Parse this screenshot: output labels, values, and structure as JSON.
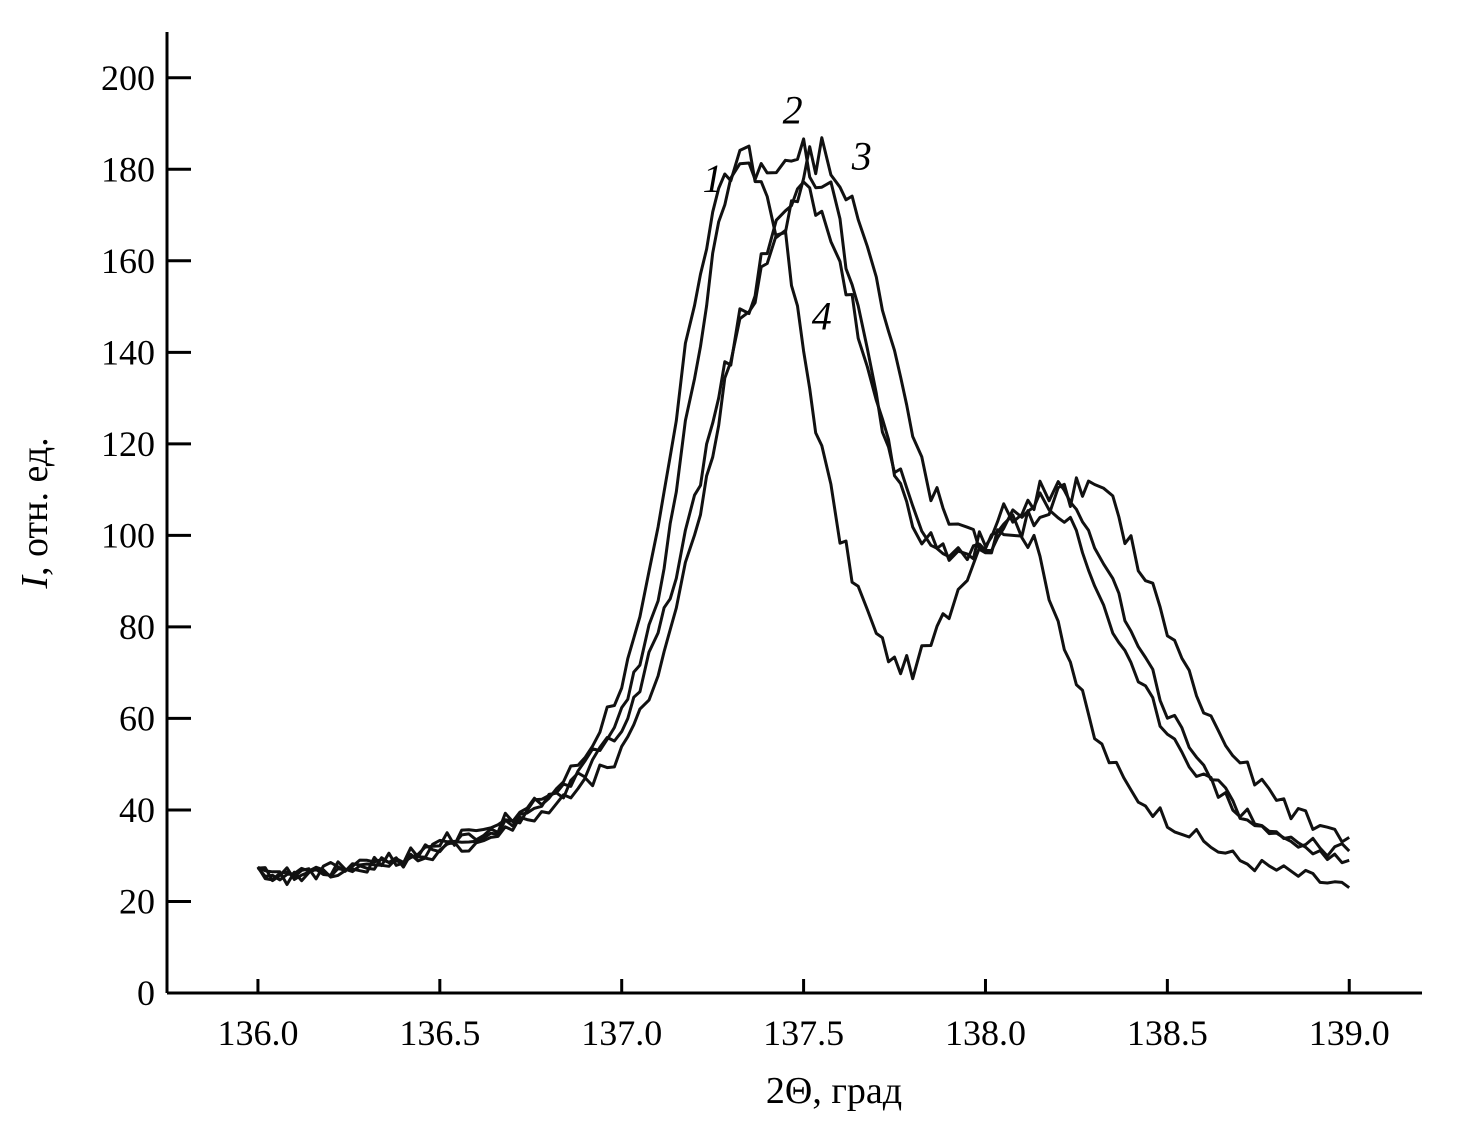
{
  "chart_data": {
    "type": "line",
    "xlabel": "2Θ, град",
    "ylabel_italic": "I",
    "ylabel_rest": ", отн. ед.",
    "xlim": [
      135.75,
      139.2
    ],
    "ylim": [
      0,
      210
    ],
    "x_ticks": [
      136.0,
      136.5,
      137.0,
      137.5,
      138.0,
      138.5,
      139.0
    ],
    "x_tick_labels": [
      "136.0",
      "136.5",
      "137.0",
      "137.5",
      "138.0",
      "138.5",
      "139.0"
    ],
    "y_ticks": [
      0,
      20,
      40,
      60,
      80,
      100,
      120,
      140,
      160,
      180,
      200
    ],
    "y_tick_labels": [
      "0",
      "20",
      "40",
      "60",
      "80",
      "100",
      "120",
      "140",
      "160",
      "180",
      "200"
    ],
    "series": [
      {
        "name": "1",
        "label_at": [
          137.25,
          175
        ],
        "points": [
          [
            136.0,
            26
          ],
          [
            136.1,
            26
          ],
          [
            136.2,
            27
          ],
          [
            136.3,
            28
          ],
          [
            136.4,
            30
          ],
          [
            136.5,
            32
          ],
          [
            136.6,
            35
          ],
          [
            136.7,
            38
          ],
          [
            136.8,
            43
          ],
          [
            136.9,
            52
          ],
          [
            137.0,
            68
          ],
          [
            137.05,
            80
          ],
          [
            137.1,
            100
          ],
          [
            137.15,
            125
          ],
          [
            137.2,
            152
          ],
          [
            137.25,
            172
          ],
          [
            137.3,
            180
          ],
          [
            137.35,
            181
          ],
          [
            137.4,
            175
          ],
          [
            137.45,
            163
          ],
          [
            137.5,
            140
          ],
          [
            137.55,
            118
          ],
          [
            137.6,
            100
          ],
          [
            137.65,
            88
          ],
          [
            137.7,
            78
          ],
          [
            137.75,
            72
          ],
          [
            137.8,
            71
          ],
          [
            137.85,
            76
          ],
          [
            137.9,
            84
          ],
          [
            137.95,
            93
          ],
          [
            138.0,
            100
          ],
          [
            138.05,
            104
          ],
          [
            138.1,
            102
          ],
          [
            138.15,
            95
          ],
          [
            138.2,
            82
          ],
          [
            138.25,
            68
          ],
          [
            138.3,
            56
          ],
          [
            138.4,
            44
          ],
          [
            138.5,
            38
          ],
          [
            138.6,
            33
          ],
          [
            138.7,
            29
          ],
          [
            138.8,
            27
          ],
          [
            138.9,
            25
          ],
          [
            139.0,
            23
          ]
        ]
      },
      {
        "name": "2",
        "label_at": [
          137.47,
          190
        ],
        "points": [
          [
            136.0,
            26
          ],
          [
            136.1,
            26
          ],
          [
            136.2,
            27
          ],
          [
            136.3,
            28
          ],
          [
            136.4,
            30
          ],
          [
            136.5,
            32
          ],
          [
            136.6,
            34
          ],
          [
            136.7,
            37
          ],
          [
            136.8,
            42
          ],
          [
            136.9,
            50
          ],
          [
            137.0,
            62
          ],
          [
            137.05,
            72
          ],
          [
            137.1,
            88
          ],
          [
            137.15,
            110
          ],
          [
            137.2,
            135
          ],
          [
            137.25,
            160
          ],
          [
            137.3,
            175
          ],
          [
            137.35,
            180
          ],
          [
            137.4,
            180
          ],
          [
            137.45,
            182
          ],
          [
            137.5,
            183
          ],
          [
            137.55,
            178
          ],
          [
            137.6,
            168
          ],
          [
            137.65,
            150
          ],
          [
            137.7,
            130
          ],
          [
            137.75,
            115
          ],
          [
            137.8,
            105
          ],
          [
            137.85,
            99
          ],
          [
            137.9,
            96
          ],
          [
            137.95,
            96
          ],
          [
            138.0,
            100
          ],
          [
            138.05,
            104
          ],
          [
            138.1,
            107
          ],
          [
            138.15,
            109
          ],
          [
            138.2,
            111
          ],
          [
            138.25,
            108
          ],
          [
            138.3,
            100
          ],
          [
            138.35,
            90
          ],
          [
            138.4,
            78
          ],
          [
            138.5,
            62
          ],
          [
            138.6,
            48
          ],
          [
            138.7,
            40
          ],
          [
            138.8,
            35
          ],
          [
            138.9,
            32
          ],
          [
            139.0,
            31
          ]
        ]
      },
      {
        "name": "3",
        "label_at": [
          137.66,
          180
        ],
        "points": [
          [
            136.0,
            26
          ],
          [
            136.1,
            25
          ],
          [
            136.2,
            27
          ],
          [
            136.3,
            28
          ],
          [
            136.4,
            29
          ],
          [
            136.5,
            31
          ],
          [
            136.6,
            33
          ],
          [
            136.7,
            36
          ],
          [
            136.8,
            40
          ],
          [
            136.9,
            45
          ],
          [
            137.0,
            52
          ],
          [
            137.05,
            60
          ],
          [
            137.1,
            70
          ],
          [
            137.15,
            85
          ],
          [
            137.2,
            100
          ],
          [
            137.25,
            120
          ],
          [
            137.3,
            138
          ],
          [
            137.35,
            150
          ],
          [
            137.4,
            160
          ],
          [
            137.45,
            170
          ],
          [
            137.5,
            180
          ],
          [
            137.55,
            184
          ],
          [
            137.6,
            180
          ],
          [
            137.65,
            170
          ],
          [
            137.7,
            155
          ],
          [
            137.75,
            138
          ],
          [
            137.8,
            122
          ],
          [
            137.85,
            110
          ],
          [
            137.9,
            103
          ],
          [
            137.95,
            99
          ],
          [
            138.0,
            98
          ],
          [
            138.05,
            99
          ],
          [
            138.1,
            102
          ],
          [
            138.15,
            105
          ],
          [
            138.2,
            108
          ],
          [
            138.25,
            110
          ],
          [
            138.3,
            110
          ],
          [
            138.35,
            106
          ],
          [
            138.4,
            98
          ],
          [
            138.5,
            80
          ],
          [
            138.6,
            62
          ],
          [
            138.7,
            50
          ],
          [
            138.8,
            42
          ],
          [
            138.9,
            37
          ],
          [
            139.0,
            34
          ]
        ]
      },
      {
        "name": "4",
        "label_at": [
          137.55,
          145
        ],
        "points": [
          [
            136.0,
            26
          ],
          [
            136.1,
            26
          ],
          [
            136.2,
            27
          ],
          [
            136.3,
            28
          ],
          [
            136.4,
            30
          ],
          [
            136.5,
            33
          ],
          [
            136.6,
            35
          ],
          [
            136.7,
            38
          ],
          [
            136.8,
            42
          ],
          [
            136.9,
            48
          ],
          [
            137.0,
            58
          ],
          [
            137.05,
            66
          ],
          [
            137.1,
            78
          ],
          [
            137.15,
            92
          ],
          [
            137.2,
            108
          ],
          [
            137.25,
            125
          ],
          [
            137.3,
            140
          ],
          [
            137.35,
            152
          ],
          [
            137.4,
            162
          ],
          [
            137.45,
            170
          ],
          [
            137.5,
            176
          ],
          [
            137.55,
            172
          ],
          [
            137.6,
            160
          ],
          [
            137.65,
            145
          ],
          [
            137.7,
            128
          ],
          [
            137.75,
            114
          ],
          [
            137.8,
            104
          ],
          [
            137.85,
            98
          ],
          [
            137.9,
            95
          ],
          [
            137.95,
            95
          ],
          [
            138.0,
            98
          ],
          [
            138.05,
            102
          ],
          [
            138.1,
            106
          ],
          [
            138.15,
            108
          ],
          [
            138.2,
            106
          ],
          [
            138.25,
            100
          ],
          [
            138.3,
            90
          ],
          [
            138.35,
            80
          ],
          [
            138.4,
            70
          ],
          [
            138.5,
            58
          ],
          [
            138.6,
            47
          ],
          [
            138.7,
            40
          ],
          [
            138.8,
            35
          ],
          [
            138.9,
            31
          ],
          [
            139.0,
            29
          ]
        ]
      }
    ]
  }
}
